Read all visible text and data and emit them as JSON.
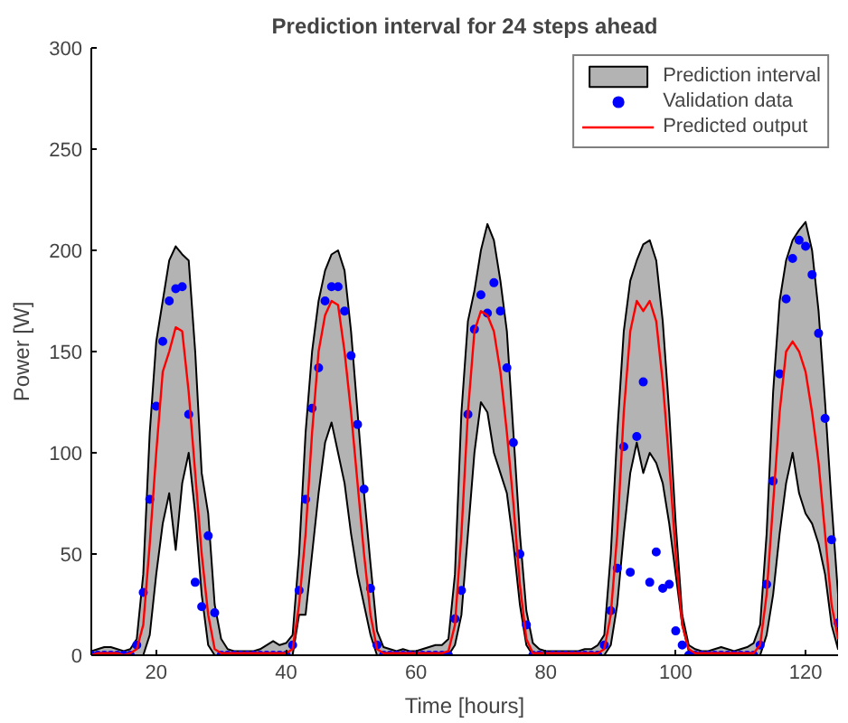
{
  "chart_data": {
    "type": "line",
    "title": "Prediction interval for 24 steps ahead",
    "xlabel": "Time [hours]",
    "ylabel": "Power [W]",
    "x": [
      10,
      11,
      12,
      13,
      14,
      15,
      16,
      17,
      18,
      19,
      20,
      21,
      22,
      23,
      24,
      25,
      26,
      27,
      28,
      29,
      30,
      31,
      32,
      33,
      34,
      35,
      36,
      37,
      38,
      39,
      40,
      41,
      42,
      43,
      44,
      45,
      46,
      47,
      48,
      49,
      50,
      51,
      52,
      53,
      54,
      55,
      56,
      57,
      58,
      59,
      60,
      61,
      62,
      63,
      64,
      65,
      66,
      67,
      68,
      69,
      70,
      71,
      72,
      73,
      74,
      75,
      76,
      77,
      78,
      79,
      80,
      81,
      82,
      83,
      84,
      85,
      86,
      87,
      88,
      89,
      90,
      91,
      92,
      93,
      94,
      95,
      96,
      97,
      98,
      99,
      100,
      101,
      102,
      103,
      104,
      105,
      106,
      107,
      108,
      109,
      110,
      111,
      112,
      113,
      114,
      115,
      116,
      117,
      118,
      119,
      120,
      121,
      122,
      123,
      124,
      125
    ],
    "series": [
      {
        "name": "Prediction interval",
        "type": "area",
        "color": "#b3b3b3",
        "values": [
          null,
          null,
          null,
          null,
          null,
          null,
          null,
          null,
          null,
          null,
          null,
          null,
          null,
          null,
          null,
          null,
          null,
          null,
          null,
          null,
          null,
          null,
          null,
          null,
          null,
          null,
          null,
          null,
          null,
          null,
          null,
          null,
          null,
          null,
          null,
          null,
          null,
          null,
          null,
          null,
          null,
          null,
          null,
          null,
          null,
          null,
          null,
          null,
          null,
          null,
          null,
          null,
          null,
          null,
          null,
          null,
          null,
          null,
          null,
          null,
          null,
          null,
          null,
          null,
          null,
          null,
          null,
          null,
          null,
          null,
          null,
          null,
          null,
          null,
          null,
          null,
          null,
          null,
          null,
          null,
          null,
          null,
          null,
          null,
          null,
          null,
          null,
          null,
          null,
          null,
          null,
          null,
          null,
          null,
          null,
          null,
          null,
          null,
          null,
          null,
          null,
          null,
          null,
          null,
          null,
          null,
          null,
          null,
          null,
          null,
          null,
          null,
          null,
          null,
          null,
          null
        ],
        "upper": [
          2,
          3,
          4,
          4,
          3,
          2,
          3,
          8,
          40,
          110,
          155,
          175,
          195,
          202,
          198,
          195,
          150,
          90,
          70,
          25,
          8,
          3,
          2,
          2,
          2,
          2,
          3,
          5,
          7,
          5,
          6,
          10,
          50,
          110,
          150,
          175,
          190,
          198,
          200,
          190,
          160,
          120,
          80,
          45,
          12,
          4,
          3,
          2,
          3,
          2,
          2,
          3,
          4,
          5,
          5,
          8,
          40,
          120,
          165,
          180,
          200,
          213,
          205,
          185,
          160,
          110,
          60,
          22,
          6,
          3,
          2,
          2,
          2,
          2,
          2,
          2,
          3,
          3,
          5,
          10,
          50,
          110,
          160,
          185,
          195,
          203,
          205,
          195,
          165,
          120,
          65,
          20,
          5,
          3,
          2,
          2,
          3,
          4,
          3,
          2,
          3,
          4,
          6,
          15,
          60,
          130,
          175,
          195,
          205,
          210,
          214,
          200,
          170,
          125,
          75,
          30
        ],
        "lower": [
          0,
          0,
          0,
          0,
          0,
          0,
          0,
          0,
          0,
          10,
          40,
          65,
          80,
          52,
          85,
          100,
          70,
          30,
          5,
          0,
          0,
          0,
          0,
          0,
          0,
          0,
          0,
          0,
          0,
          0,
          0,
          0,
          20,
          20,
          50,
          80,
          105,
          115,
          100,
          85,
          60,
          40,
          25,
          10,
          0,
          0,
          0,
          0,
          0,
          0,
          0,
          0,
          0,
          0,
          0,
          0,
          5,
          20,
          60,
          100,
          125,
          120,
          100,
          90,
          80,
          55,
          25,
          5,
          0,
          0,
          0,
          0,
          0,
          0,
          0,
          0,
          0,
          0,
          0,
          0,
          5,
          25,
          60,
          90,
          105,
          90,
          100,
          95,
          85,
          65,
          40,
          15,
          2,
          0,
          0,
          0,
          0,
          0,
          0,
          0,
          0,
          0,
          0,
          0,
          10,
          30,
          60,
          85,
          100,
          80,
          70,
          65,
          55,
          40,
          15,
          3
        ]
      },
      {
        "name": "Validation data",
        "type": "scatter",
        "marker": "circle",
        "color": "#0000ff",
        "values": [
          0,
          0,
          0,
          0,
          0,
          0,
          0,
          5,
          31,
          77,
          123,
          155,
          175,
          181,
          182,
          119,
          36,
          24,
          59,
          21,
          0,
          0,
          0,
          0,
          0,
          0,
          0,
          0,
          0,
          0,
          0,
          5,
          32,
          77,
          122,
          142,
          175,
          182,
          182,
          170,
          148,
          114,
          82,
          33,
          5,
          0,
          0,
          0,
          0,
          0,
          0,
          0,
          0,
          0,
          0,
          0,
          18,
          32,
          119,
          161,
          178,
          169,
          184,
          170,
          142,
          105,
          50,
          15,
          0,
          0,
          0,
          0,
          0,
          0,
          0,
          0,
          0,
          0,
          0,
          5,
          22,
          43,
          103,
          41,
          108,
          135,
          36,
          51,
          33,
          35,
          12,
          5,
          0,
          0,
          0,
          0,
          0,
          0,
          0,
          0,
          0,
          0,
          0,
          5,
          35,
          86,
          139,
          176,
          196,
          205,
          202,
          188,
          159,
          117,
          57,
          16
        ]
      },
      {
        "name": "Predicted output",
        "line_style": "solid",
        "color": "#ff0000",
        "values": [
          0,
          1,
          1,
          1,
          1,
          0,
          1,
          3,
          15,
          55,
          100,
          140,
          150,
          162,
          160,
          130,
          90,
          50,
          20,
          3,
          1,
          1,
          1,
          1,
          1,
          1,
          1,
          1,
          1,
          1,
          1,
          3,
          25,
          60,
          110,
          150,
          168,
          175,
          173,
          150,
          120,
          85,
          50,
          20,
          3,
          1,
          1,
          1,
          1,
          1,
          1,
          1,
          1,
          1,
          1,
          2,
          15,
          60,
          120,
          160,
          170,
          168,
          160,
          140,
          110,
          75,
          35,
          8,
          1,
          1,
          1,
          1,
          1,
          1,
          1,
          1,
          1,
          1,
          1,
          3,
          20,
          60,
          120,
          160,
          175,
          170,
          175,
          165,
          135,
          95,
          50,
          15,
          3,
          1,
          1,
          1,
          1,
          1,
          1,
          1,
          1,
          1,
          1,
          5,
          30,
          75,
          120,
          150,
          155,
          150,
          140,
          120,
          95,
          60,
          25,
          8
        ]
      }
    ],
    "xlim": [
      10,
      125
    ],
    "ylim": [
      0,
      300
    ],
    "xticks": [
      20,
      40,
      60,
      80,
      100,
      120
    ],
    "yticks": [
      0,
      50,
      100,
      150,
      200,
      250,
      300
    ],
    "grid": false,
    "legend": "top right"
  }
}
